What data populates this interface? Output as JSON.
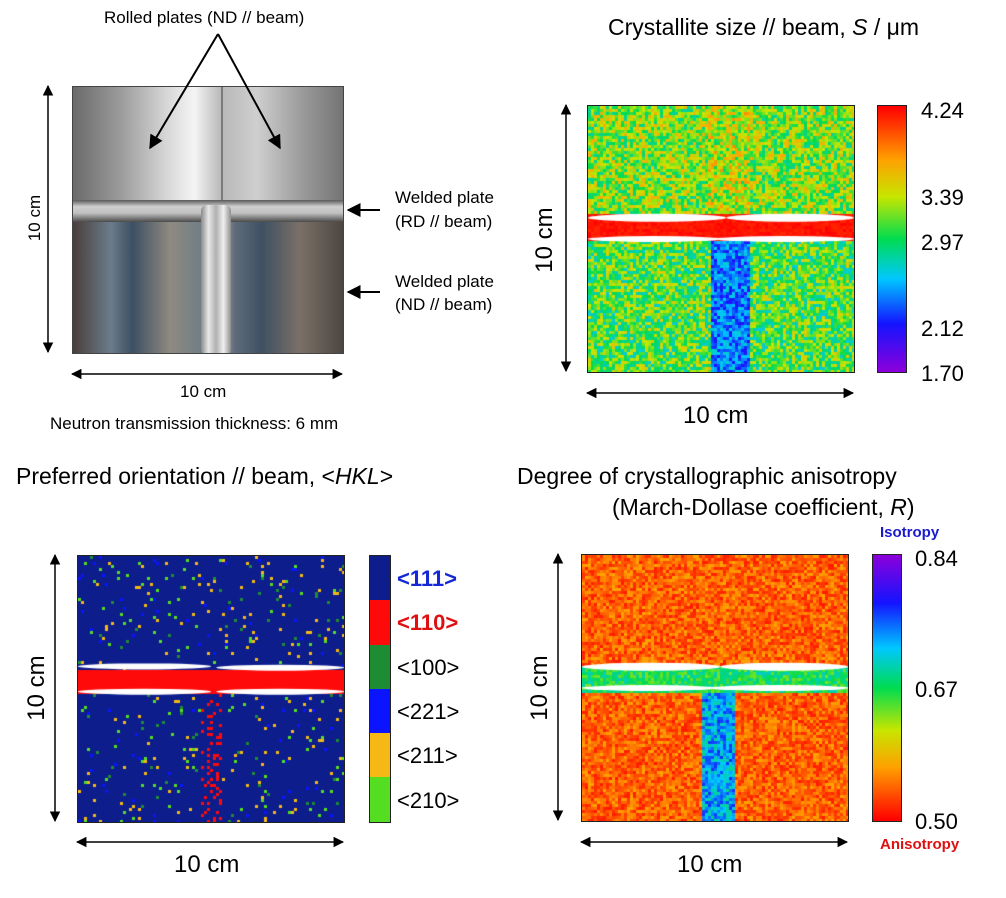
{
  "photo_panel": {
    "rolled_plates_label": "Rolled plates (ND // beam)",
    "welded_rd_line1": "Welded plate",
    "welded_rd_line2": "(RD // beam)",
    "welded_nd_line1": "Welded plate",
    "welded_nd_line2": "(ND // beam)",
    "height_label": "10 cm",
    "width_label": "10 cm",
    "thickness_note": "Neutron transmission thickness: 6 mm"
  },
  "crystallite_panel": {
    "title": "Crystallite size // beam, S / μm",
    "title_prefix": "Crystallite size // beam, ",
    "title_symbol": "S",
    "title_suffix": " / μm",
    "height_label": "10 cm",
    "width_label": "10 cm",
    "colorbar_ticks": [
      "4.24",
      "3.39",
      "2.97",
      "2.12",
      "1.70"
    ]
  },
  "orientation_panel": {
    "title_prefix": "Preferred orientation // beam, <",
    "title_symbol": "HKL",
    "title_suffix": ">",
    "height_label": "10 cm",
    "width_label": "10 cm",
    "legend": [
      {
        "label": "<111>",
        "color": "#0d1d8c",
        "text_color": "#1428d6",
        "bold": true
      },
      {
        "label": "<110>",
        "color": "#ff0a0a",
        "text_color": "#e01010",
        "bold": true
      },
      {
        "label": "<100>",
        "color": "#1e8c32",
        "text_color": "#000000",
        "bold": false
      },
      {
        "label": "<221>",
        "color": "#0a14ff",
        "text_color": "#000000",
        "bold": false
      },
      {
        "label": "<211>",
        "color": "#f5b814",
        "text_color": "#000000",
        "bold": false
      },
      {
        "label": "<210>",
        "color": "#55dd22",
        "text_color": "#000000",
        "bold": false
      }
    ]
  },
  "anisotropy_panel": {
    "title_line1": "Degree of crystallographic anisotropy",
    "title_line2_prefix": "(March-Dollase coefficient, ",
    "title_line2_symbol": "R",
    "title_line2_suffix": ")",
    "isotropy_label": "Isotropy",
    "anisotropy_label": "Anisotropy",
    "isotropy_color": "#1a1acc",
    "anisotropy_color": "#dd1111",
    "height_label": "10 cm",
    "width_label": "10 cm",
    "colorbar_ticks": [
      "0.84",
      "0.67",
      "0.50"
    ]
  }
}
